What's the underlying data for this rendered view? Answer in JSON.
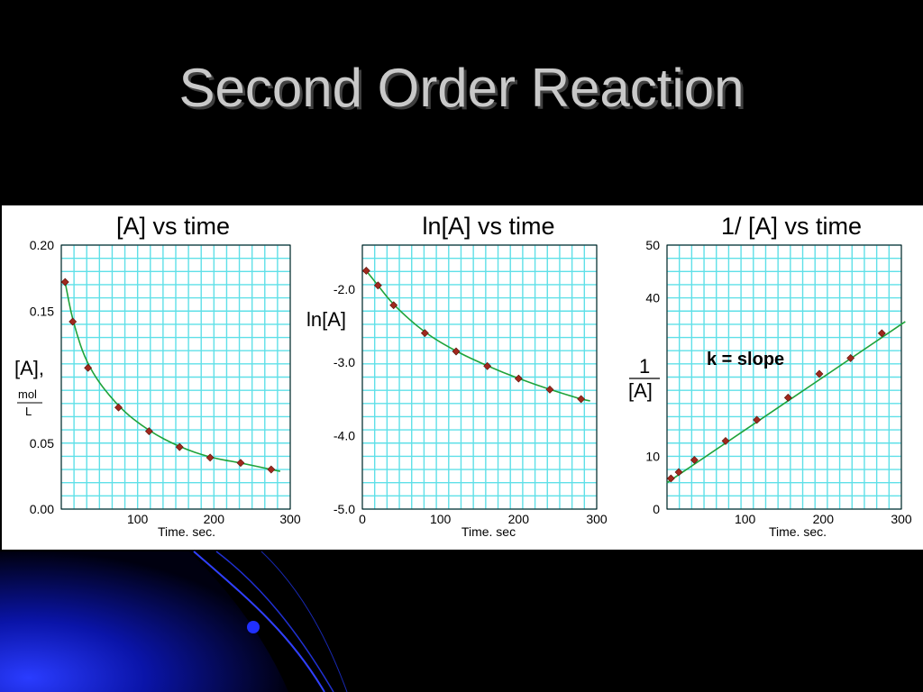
{
  "slide": {
    "title": "Second Order Reaction",
    "colors": {
      "background": "#000000",
      "title": "#c9c9c9",
      "accent_blue": "#1a2cff",
      "grid": "#5fe0e8",
      "curve": "#1fa33a",
      "marker": "#a0281e"
    }
  },
  "chart_data": [
    {
      "type": "line",
      "title": "[A]  vs time",
      "xlabel": "Time. sec.",
      "ylabel": "[A],",
      "ylabel_unit_num": "mol",
      "ylabel_unit_den": "L",
      "xlim": [
        0,
        300
      ],
      "ylim": [
        0,
        0.2
      ],
      "xticks": [
        100,
        200,
        300
      ],
      "xtick_labels": [
        "100",
        "200",
        "300"
      ],
      "yticks": [
        0,
        0.05,
        0.15,
        0.2
      ],
      "ytick_labels": [
        "0.00",
        "0.05",
        "0.15",
        "0.20"
      ],
      "grid": true,
      "x": [
        5,
        15,
        35,
        75,
        115,
        155,
        195,
        235,
        275
      ],
      "y": [
        0.172,
        0.142,
        0.107,
        0.077,
        0.059,
        0.047,
        0.039,
        0.035,
        0.03
      ]
    },
    {
      "type": "line",
      "title": "ln[A] vs time",
      "xlabel": "Time. sec",
      "ylabel": "ln[A]",
      "xlim": [
        0,
        300
      ],
      "ylim": [
        -5.0,
        -1.4
      ],
      "xticks": [
        0,
        100,
        200,
        300
      ],
      "xtick_labels": [
        "0",
        "100",
        "200",
        "300"
      ],
      "yticks": [
        -2.0,
        -3.0,
        -4.0,
        -5.0
      ],
      "ytick_labels": [
        "-2.0",
        "-3.0",
        "-4.0",
        "-5.0"
      ],
      "grid": true,
      "x": [
        5,
        20,
        40,
        80,
        120,
        160,
        200,
        240,
        280
      ],
      "y": [
        -1.75,
        -1.95,
        -2.22,
        -2.6,
        -2.85,
        -3.05,
        -3.22,
        -3.37,
        -3.5
      ]
    },
    {
      "type": "line",
      "title": "1/ [A] vs time",
      "xlabel": "Time. sec.",
      "ylabel_num": "1",
      "ylabel_den": "[A]",
      "xlim": [
        0,
        300
      ],
      "ylim": [
        0,
        50
      ],
      "xticks": [
        100,
        200,
        300
      ],
      "xtick_labels": [
        "100",
        "200",
        "300"
      ],
      "yticks": [
        0,
        10,
        40,
        50
      ],
      "ytick_labels": [
        "0",
        "10",
        "40",
        "50"
      ],
      "grid": true,
      "annotation": "k = slope",
      "x": [
        5,
        15,
        35,
        75,
        115,
        155,
        195,
        235,
        275
      ],
      "y": [
        5.8,
        7.0,
        9.3,
        12.9,
        16.9,
        21.1,
        25.6,
        28.6,
        33.3
      ],
      "fit_line": {
        "x": [
          0,
          305
        ],
        "y": [
          5.0,
          35.5
        ]
      }
    }
  ]
}
